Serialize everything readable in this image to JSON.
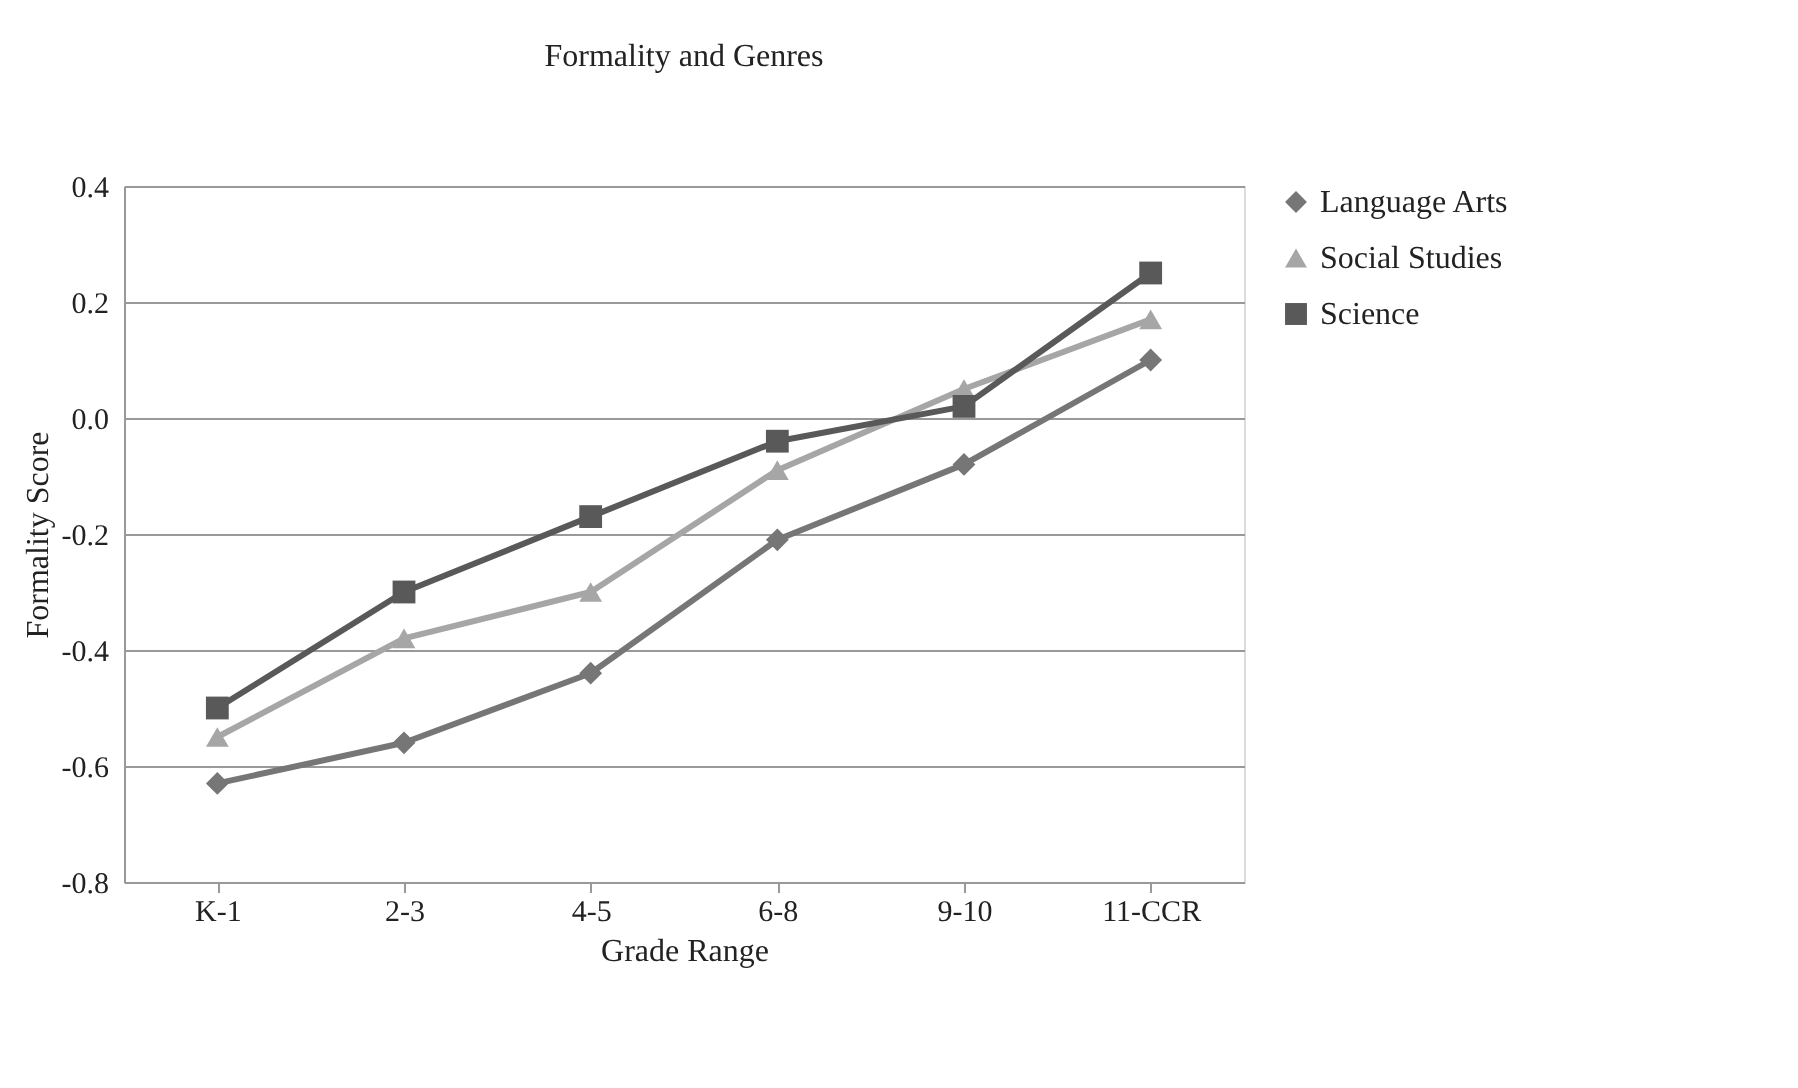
{
  "chart_data": {
    "type": "line",
    "title": "Formality and Genres",
    "xlabel": "Grade Range",
    "ylabel": "Formality Score",
    "categories": [
      "K-1",
      "2-3",
      "4-5",
      "6-8",
      "9-10",
      "11-CCR"
    ],
    "series": [
      {
        "name": "Language Arts",
        "color": "#767676",
        "marker": "diamond",
        "values": [
          -0.63,
          -0.56,
          -0.44,
          -0.21,
          -0.08,
          0.1
        ]
      },
      {
        "name": "Social Studies",
        "color": "#a6a6a6",
        "marker": "triangle",
        "values": [
          -0.55,
          -0.38,
          -0.3,
          -0.09,
          0.05,
          0.17
        ]
      },
      {
        "name": "Science",
        "color": "#595959",
        "marker": "square",
        "values": [
          -0.5,
          -0.3,
          -0.17,
          -0.04,
          0.02,
          0.25
        ]
      }
    ],
    "ylim": [
      -0.8,
      0.4
    ],
    "yticks": [
      -0.8,
      -0.6,
      -0.4,
      -0.2,
      {
        "value": 0,
        "label": "0.0"
      },
      0.2,
      0.4
    ],
    "grid": "y",
    "legend": "right",
    "line_style": "solid"
  }
}
